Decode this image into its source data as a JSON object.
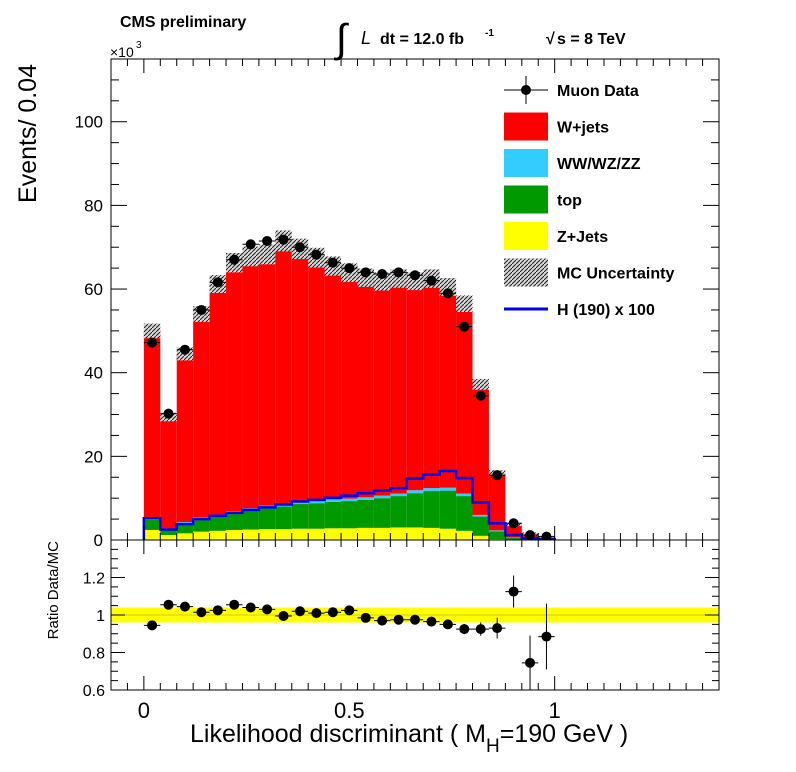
{
  "header": {
    "experiment": "CMS preliminary",
    "luminosity": "dt = 12.0 fb",
    "lumi_exponent": "-1",
    "energy": "s = 8 TeV",
    "multiplier": "×10",
    "multiplier_exponent": "3"
  },
  "chart_data": {
    "type": "bar",
    "title": "",
    "xlabel_pre": "Likelihood discriminant ( M",
    "xlabel_sub": "H",
    "xlabel_post": "=190 GeV )",
    "ylabel": "Events/ 0.04",
    "ratio_ylabel": "Ratio Data/MC",
    "xlim": [
      -0.08,
      1.4
    ],
    "ylim": [
      0,
      115
    ],
    "y_units": "x10^3 events",
    "x_ticks": [
      0,
      0.5,
      1
    ],
    "x_tick_labels": [
      "0",
      "0.5",
      "1"
    ],
    "y_ticks": [
      0,
      20,
      40,
      60,
      80,
      100
    ],
    "y_tick_labels": [
      "0",
      "20",
      "40",
      "60",
      "80",
      "100"
    ],
    "ratio_ylim": [
      0.6,
      1.4
    ],
    "ratio_y_ticks": [
      0.6,
      0.8,
      1.0,
      1.2
    ],
    "ratio_y_tick_labels": [
      "0.6",
      "0.8",
      "1",
      "1.2"
    ],
    "ratio_band": [
      0.96,
      1.04
    ],
    "bin_width": 0.04,
    "bin_edges_start": 0.0,
    "stack": [
      {
        "name": "Z+Jets",
        "color": "#ffff00",
        "values": [
          2.4,
          1.2,
          1.6,
          2.0,
          2.2,
          2.4,
          2.5,
          2.6,
          2.6,
          2.7,
          2.7,
          2.8,
          2.8,
          2.9,
          2.9,
          3.0,
          3.0,
          2.9,
          2.7,
          2.2,
          1.0,
          0.2,
          0.1,
          0.05,
          0.02
        ]
      },
      {
        "name": "top",
        "color": "#009900",
        "values": [
          2.4,
          1.1,
          2.4,
          3.0,
          3.5,
          4.0,
          4.6,
          5.1,
          5.4,
          5.9,
          6.1,
          6.3,
          6.5,
          6.7,
          7.1,
          7.5,
          8.2,
          8.8,
          9.1,
          8.3,
          4.6,
          1.9,
          0.4,
          0.2,
          0.05
        ]
      },
      {
        "name": "WW/WZ/ZZ",
        "color": "#33ccff",
        "values": [
          0.3,
          0.2,
          0.3,
          0.4,
          0.4,
          0.5,
          0.5,
          0.5,
          0.6,
          0.6,
          0.6,
          0.6,
          0.6,
          0.6,
          0.6,
          0.6,
          0.7,
          0.7,
          0.7,
          0.6,
          0.4,
          0.2,
          0.1,
          0.05,
          0.02
        ]
      },
      {
        "name": "W+jets",
        "color": "#ff0000",
        "values": [
          44.9,
          26.9,
          40.2,
          48.6,
          55.1,
          59.4,
          60.2,
          60.1,
          62.9,
          60.4,
          58.1,
          55.8,
          54.0,
          52.5,
          51.2,
          51.4,
          50.0,
          50.1,
          48.0,
          45.4,
          31.2,
          13.8,
          3.1,
          1.1,
          0.5
        ]
      }
    ],
    "mc_total": [
      50.0,
      29.4,
      44.5,
      54.0,
      61.2,
      66.3,
      67.8,
      68.3,
      71.5,
      69.6,
      67.5,
      65.5,
      63.9,
      62.7,
      61.8,
      62.5,
      61.9,
      62.5,
      60.5,
      56.5,
      37.2,
      16.1,
      3.7,
      1.4,
      0.6
    ],
    "data_x": [
      0.02,
      0.06,
      0.1,
      0.14,
      0.18,
      0.22,
      0.26,
      0.3,
      0.34,
      0.38,
      0.42,
      0.46,
      0.5,
      0.54,
      0.58,
      0.62,
      0.66,
      0.7,
      0.74,
      0.78,
      0.82,
      0.86,
      0.9,
      0.94,
      0.98
    ],
    "data_y": [
      47.2,
      30.2,
      45.5,
      55.0,
      61.6,
      67.0,
      70.7,
      71.5,
      71.8,
      70.0,
      68.2,
      66.3,
      65.0,
      64.0,
      63.6,
      64.0,
      63.3,
      62.0,
      59.0,
      51.0,
      34.5,
      15.5,
      4.0,
      1.2,
      0.8
    ],
    "ratio_y": [
      0.945,
      1.055,
      1.045,
      1.015,
      1.025,
      1.055,
      1.04,
      1.03,
      0.995,
      1.02,
      1.01,
      1.015,
      1.025,
      0.985,
      0.97,
      0.975,
      0.975,
      0.965,
      0.95,
      0.925,
      0.925,
      0.93,
      1.125,
      0.745,
      0.885
    ],
    "ratio_err": [
      0.01,
      0.015,
      0.015,
      0.012,
      0.012,
      0.012,
      0.012,
      0.012,
      0.012,
      0.012,
      0.012,
      0.012,
      0.012,
      0.012,
      0.012,
      0.012,
      0.012,
      0.014,
      0.018,
      0.022,
      0.03,
      0.05,
      0.08,
      0.14,
      0.17
    ],
    "signal": {
      "name": "H (190) x 100",
      "color": "#0000ee",
      "values": [
        5.2,
        2.5,
        3.8,
        5.0,
        5.8,
        6.5,
        7.2,
        7.8,
        8.5,
        9.2,
        9.6,
        10.1,
        10.6,
        11.2,
        11.8,
        12.4,
        14.7,
        15.6,
        16.5,
        14.8,
        9.0,
        4.0,
        1.2,
        0.4,
        0.2
      ]
    },
    "legend": {
      "placement": "top-right",
      "entries": [
        {
          "label": "Muon Data",
          "kind": "marker",
          "color": "#000000"
        },
        {
          "label": "W+jets",
          "kind": "fill",
          "color": "#ff0000"
        },
        {
          "label": "WW/WZ/ZZ",
          "kind": "fill",
          "color": "#33ccff"
        },
        {
          "label": "top",
          "kind": "fill",
          "color": "#009900"
        },
        {
          "label": "Z+Jets",
          "kind": "fill",
          "color": "#ffff00"
        },
        {
          "label": "MC Uncertainty",
          "kind": "hatch",
          "color": "#000000"
        },
        {
          "label": "H (190) x 100",
          "kind": "line",
          "color": "#0000ee"
        }
      ]
    }
  }
}
